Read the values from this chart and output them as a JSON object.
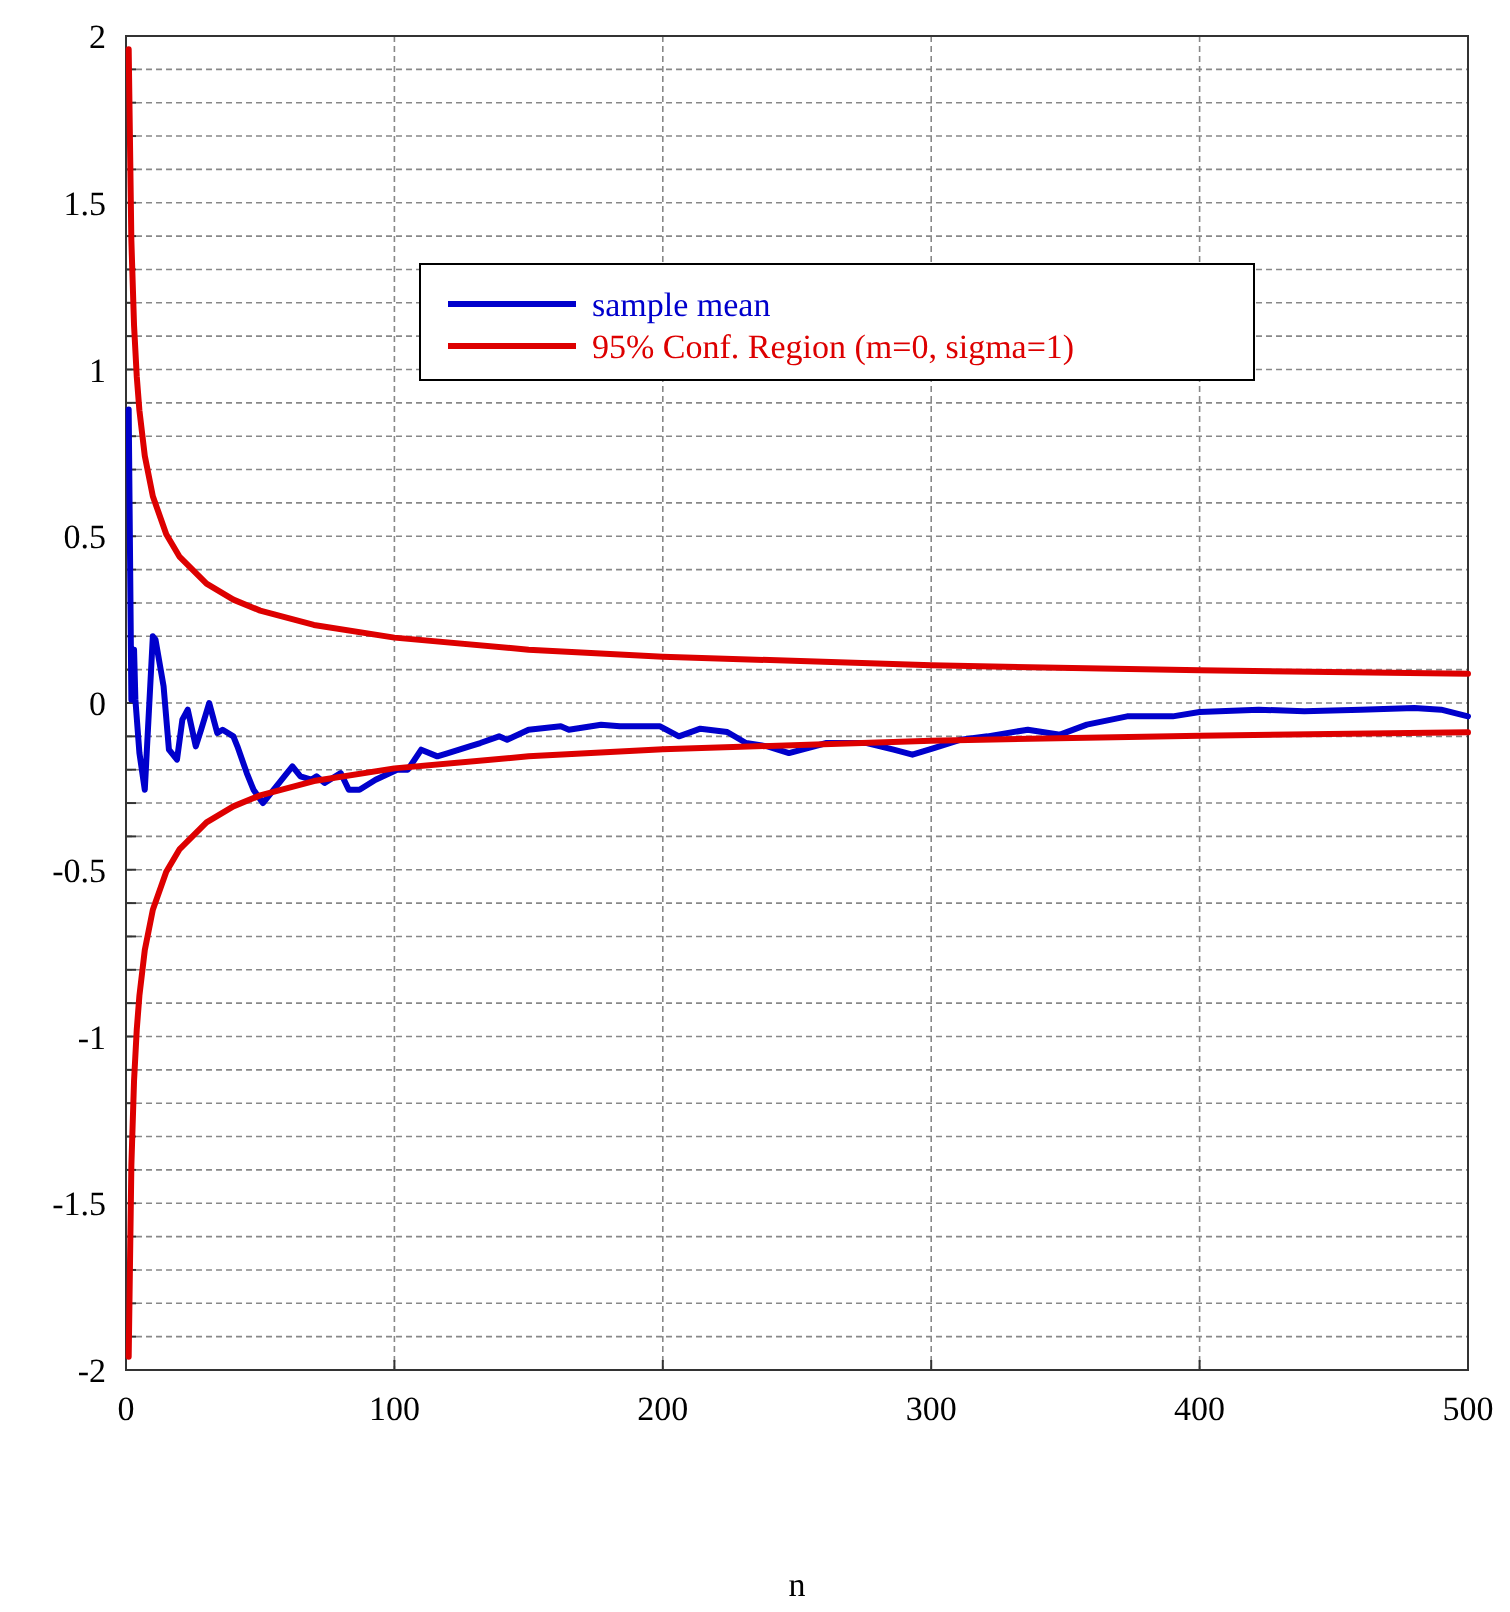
{
  "chart_data": {
    "type": "line",
    "xlabel": "n",
    "x": [
      1,
      2,
      3,
      3.5,
      5,
      7,
      10,
      11,
      14,
      16,
      19,
      21,
      23,
      26,
      28,
      31,
      34,
      36,
      40,
      41.5,
      45,
      47.5,
      51,
      54,
      59,
      62,
      65,
      69,
      71,
      74,
      80,
      83,
      87,
      93,
      101,
      105,
      110,
      116,
      120,
      128,
      132,
      139,
      142,
      150,
      162,
      165,
      177,
      184,
      199,
      206,
      214,
      224,
      231,
      239,
      247,
      261,
      276,
      286,
      293,
      301,
      311,
      321,
      336,
      348,
      358,
      373,
      390,
      400,
      422,
      439,
      460,
      480,
      490,
      500
    ],
    "xlim": [
      0,
      500
    ],
    "xticks": [
      0,
      100,
      200,
      300,
      400,
      500
    ],
    "ylim": [
      -2,
      2
    ],
    "yticks": [
      -2,
      {
        "value": -1.9,
        "label": null
      },
      {
        "value": -1.8,
        "label": null
      },
      {
        "value": -1.7,
        "label": null
      },
      {
        "value": -1.6,
        "label": null
      },
      -1.5,
      {
        "value": -1.4,
        "label": null
      },
      {
        "value": -1.3,
        "label": null
      },
      {
        "value": -1.2,
        "label": null
      },
      {
        "value": -1.1,
        "label": null
      },
      -1,
      {
        "value": -0.9,
        "label": null
      },
      {
        "value": -0.8,
        "label": null
      },
      {
        "value": -0.7,
        "label": null
      },
      {
        "value": -0.6,
        "label": null
      },
      -0.5,
      {
        "value": -0.4,
        "label": null
      },
      {
        "value": -0.3,
        "label": null
      },
      {
        "value": -0.2,
        "label": null
      },
      {
        "value": -0.1,
        "label": null
      },
      0,
      {
        "value": 0.1,
        "label": null
      },
      {
        "value": 0.2,
        "label": null
      },
      {
        "value": 0.3,
        "label": null
      },
      {
        "value": 0.4,
        "label": null
      },
      0.5,
      {
        "value": 0.6,
        "label": null
      },
      {
        "value": 0.7,
        "label": null
      },
      {
        "value": 0.8,
        "label": null
      },
      {
        "value": 0.9,
        "label": null
      },
      1,
      {
        "value": 1.1,
        "label": null
      },
      {
        "value": 1.2,
        "label": null
      },
      {
        "value": 1.3,
        "label": null
      },
      {
        "value": 1.4,
        "label": null
      },
      1.5,
      {
        "value": 1.6,
        "label": null
      },
      {
        "value": 1.7,
        "label": null
      },
      {
        "value": 1.8,
        "label": null
      },
      {
        "value": 1.9,
        "label": null
      },
      2
    ],
    "grid": true,
    "legend": "top",
    "line_style": "solid",
    "marker": "none",
    "series": [
      {
        "name": "sample mean",
        "color": "#0000cc",
        "values": [
          0.88,
          0.01,
          0.16,
          0.01,
          -0.15,
          -0.26,
          0.2,
          0.19,
          0.05,
          -0.14,
          -0.17,
          -0.05,
          -0.02,
          -0.13,
          -0.08,
          0,
          -0.09,
          -0.08,
          -0.1,
          -0.13,
          -0.21,
          -0.26,
          -0.3,
          -0.27,
          -0.22,
          -0.19,
          -0.22,
          -0.23,
          -0.22,
          -0.24,
          -0.21,
          -0.26,
          -0.26,
          -0.23,
          -0.2,
          -0.2,
          -0.14,
          -0.16,
          -0.15,
          -0.13,
          -0.12,
          -0.1,
          -0.11,
          -0.08,
          -0.07,
          -0.08,
          -0.065,
          -0.07,
          -0.07,
          -0.1,
          -0.077,
          -0.087,
          -0.12,
          -0.13,
          -0.15,
          -0.12,
          -0.12,
          -0.14,
          -0.155,
          -0.135,
          -0.11,
          -0.1,
          -0.08,
          -0.095,
          -0.065,
          -0.04,
          -0.04,
          -0.027,
          -0.02,
          -0.025,
          -0.02,
          -0.015,
          -0.02,
          -0.04
        ]
      },
      {
        "name": "95% Conf. Region (m=0, sigma=1)",
        "color": "#dd0000",
        "x": [
          1,
          2,
          3,
          4,
          5,
          7,
          10,
          15,
          20,
          30,
          40,
          50,
          70,
          100,
          150,
          200,
          300,
          400,
          500
        ],
        "values": [
          1.96,
          1.386,
          1.132,
          0.98,
          0.877,
          0.741,
          0.62,
          0.506,
          0.438,
          0.358,
          0.31,
          0.277,
          0.234,
          0.196,
          0.16,
          0.139,
          0.113,
          0.098,
          0.088
        ]
      },
      {
        "color": "#dd0000",
        "x": [
          1,
          2,
          3,
          4,
          5,
          7,
          10,
          15,
          20,
          30,
          40,
          50,
          70,
          100,
          150,
          200,
          300,
          400,
          500
        ],
        "values": [
          -1.96,
          -1.386,
          -1.132,
          -0.98,
          -0.877,
          -0.741,
          -0.62,
          -0.506,
          -0.438,
          -0.358,
          -0.31,
          -0.277,
          -0.234,
          -0.196,
          -0.16,
          -0.139,
          -0.113,
          -0.098,
          -0.088
        ]
      }
    ]
  }
}
